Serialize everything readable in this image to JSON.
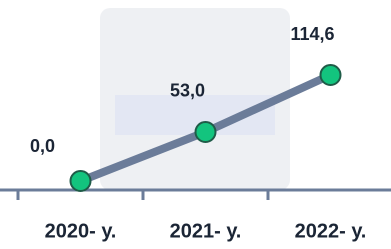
{
  "chart_data": {
    "type": "line",
    "categories": [
      "2020- у.",
      "2021- у.",
      "2022- у."
    ],
    "values": [
      0,
      53,
      114.6
    ],
    "value_labels": [
      "0,0",
      "53,0",
      "114,6"
    ],
    "color": "#6b7c99",
    "marker_color": "#13c47e"
  }
}
